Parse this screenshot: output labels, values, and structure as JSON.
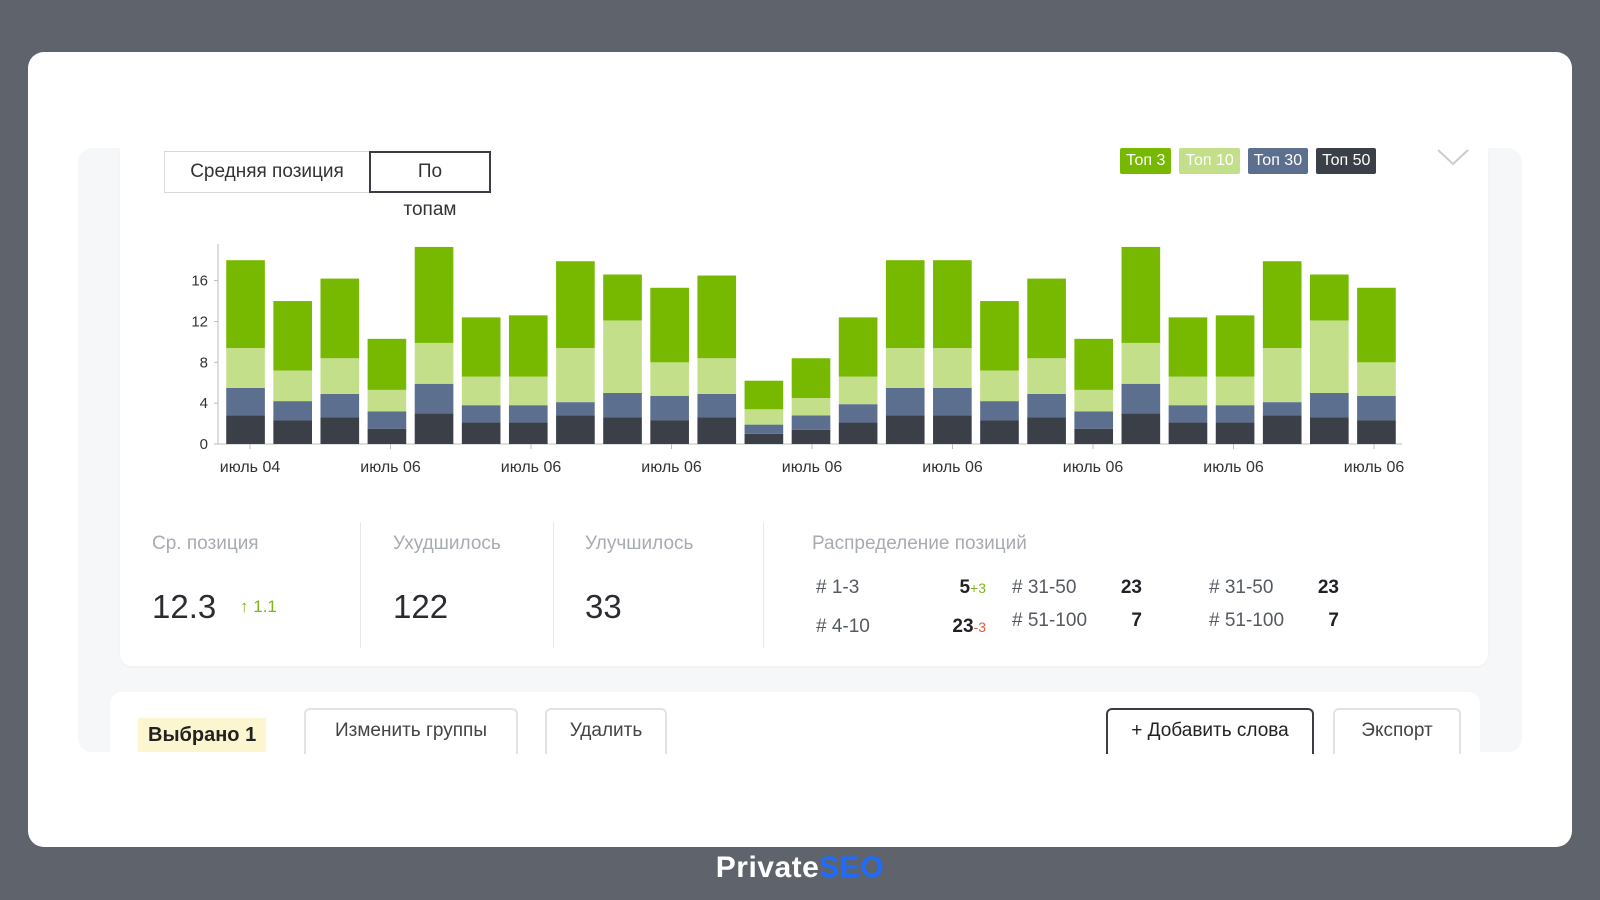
{
  "tabs": {
    "avg_position": "Средняя позиция",
    "by_tops": "По топам"
  },
  "legend": [
    {
      "label": "Топ 3",
      "color": "#76b900"
    },
    {
      "label": "Топ 10",
      "color": "#c4df8a"
    },
    {
      "label": "Топ 30",
      "color": "#5c6f8e"
    },
    {
      "label": "Топ 50",
      "color": "#3b3f48"
    }
  ],
  "chart_data": {
    "type": "bar",
    "stacked": true,
    "ylim": [
      0,
      19
    ],
    "yticks": [
      0,
      4,
      8,
      12,
      16
    ],
    "xtick_labels": [
      "июль 04",
      "июль 06",
      "июль 06",
      "июль 06",
      "июль 06",
      "июль 06",
      "июль 06",
      "июль 06",
      "июль 06"
    ],
    "series": [
      {
        "name": "Топ 50",
        "color": "#3b3f48",
        "values": [
          2.8,
          2.3,
          2.6,
          1.5,
          3.0,
          2.1,
          2.1,
          2.8,
          2.6,
          2.3,
          2.6,
          1.0,
          1.4,
          2.1,
          2.8,
          2.8,
          2.3,
          2.6,
          1.5,
          3.0,
          2.1,
          2.1,
          2.8,
          2.6,
          2.3
        ]
      },
      {
        "name": "Топ 30",
        "color": "#5c6f8e",
        "values": [
          2.7,
          1.9,
          2.3,
          1.7,
          2.9,
          1.7,
          1.7,
          1.3,
          2.4,
          2.4,
          2.3,
          0.9,
          1.4,
          1.8,
          2.7,
          2.7,
          1.9,
          2.3,
          1.7,
          2.9,
          1.7,
          1.7,
          1.3,
          2.4,
          2.4
        ]
      },
      {
        "name": "Топ 10",
        "color": "#c4df8a",
        "values": [
          3.9,
          3.0,
          3.5,
          2.1,
          4.0,
          2.8,
          2.8,
          5.3,
          7.1,
          3.3,
          3.5,
          1.5,
          1.7,
          2.7,
          3.9,
          3.9,
          3.0,
          3.5,
          2.1,
          4.0,
          2.8,
          2.8,
          5.3,
          7.1,
          3.3
        ]
      },
      {
        "name": "Топ 3",
        "color": "#76b900",
        "values": [
          8.6,
          6.8,
          7.8,
          5.0,
          9.4,
          5.8,
          6.0,
          8.5,
          4.5,
          7.3,
          8.1,
          2.8,
          3.9,
          5.8,
          8.6,
          8.6,
          6.8,
          7.8,
          5.0,
          9.4,
          5.8,
          6.0,
          8.5,
          4.5,
          7.3
        ]
      }
    ]
  },
  "stats": {
    "avg_label": "Ср. позиция",
    "avg_value": "12.3",
    "avg_delta": "1.1",
    "worse_label": "Ухудшилось",
    "worse_value": "122",
    "better_label": "Улучшилось",
    "better_value": "33",
    "dist_label": "Распределение позиций",
    "dist": {
      "r1": {
        "label": "# 1-3",
        "value": "5",
        "delta": "+3"
      },
      "r2": {
        "label": "# 4-10",
        "value": "23",
        "delta": "-3"
      },
      "r3": {
        "label": "# 31-50",
        "value": "23"
      },
      "r4": {
        "label": "# 51-100",
        "value": "7"
      },
      "r5": {
        "label": "# 31-50",
        "value": "23"
      },
      "r6": {
        "label": "# 51-100",
        "value": "7"
      }
    }
  },
  "actions": {
    "selected": "Выбрано 1",
    "change_groups": "Изменить группы",
    "delete": "Удалить",
    "add_words": "+ Добавить слова",
    "export": "Экспорт"
  },
  "brand": {
    "part1": "Private",
    "part2": "SEO"
  }
}
